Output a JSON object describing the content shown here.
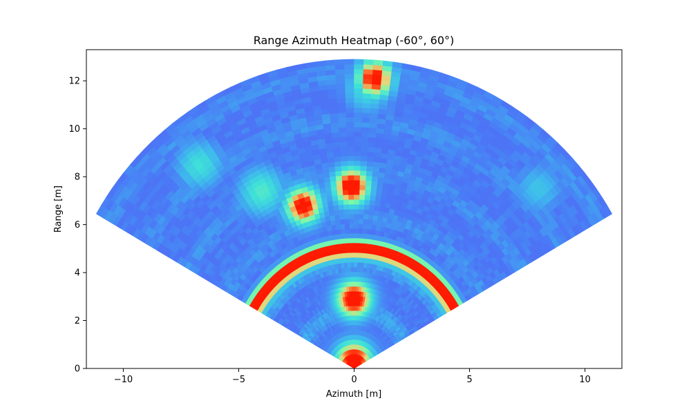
{
  "chart_data": {
    "type": "heatmap",
    "title": "Range Azimuth Heatmap (-60°, 60°)",
    "xlabel": "Azimuth [m]",
    "ylabel": "Range [m]",
    "xlim": [
      -11.6,
      11.6
    ],
    "ylim": [
      0,
      13.3
    ],
    "xticks": [
      -10,
      -5,
      0,
      5,
      10
    ],
    "yticks": [
      0,
      2,
      4,
      6,
      8,
      10,
      12
    ],
    "angle_range_deg": [
      -60,
      60
    ],
    "max_range": 12.9,
    "grid": false,
    "colormap": "rainbow",
    "colors": {
      "background_low": "#5a4df2",
      "mid_blue": "#4a9cf4",
      "cyan": "#3fe0d9",
      "green": "#7ef8a8",
      "yellow": "#e6d67a",
      "orange": "#ff6a2e",
      "red": "#ff1a00"
    },
    "hotspots": [
      {
        "x": 0.0,
        "y": 0.35,
        "intensity": 1.0
      },
      {
        "x": 0.0,
        "y": 2.9,
        "intensity": 1.0
      },
      {
        "x": -2.2,
        "y": 6.8,
        "intensity": 0.95
      },
      {
        "x": -0.1,
        "y": 7.6,
        "intensity": 1.0
      },
      {
        "x": 0.9,
        "y": 12.1,
        "intensity": 0.95
      },
      {
        "x": -4.0,
        "y": 7.4,
        "intensity": 0.55
      },
      {
        "x": -6.7,
        "y": 8.5,
        "intensity": 0.5
      },
      {
        "x": 8.0,
        "y": 7.5,
        "intensity": 0.4
      },
      {
        "x": 0.6,
        "y": 11.7,
        "intensity": 0.5
      }
    ],
    "ring": {
      "radius": 5.0,
      "angle_span_deg": [
        -60,
        60
      ],
      "intensity": 1.0
    }
  }
}
